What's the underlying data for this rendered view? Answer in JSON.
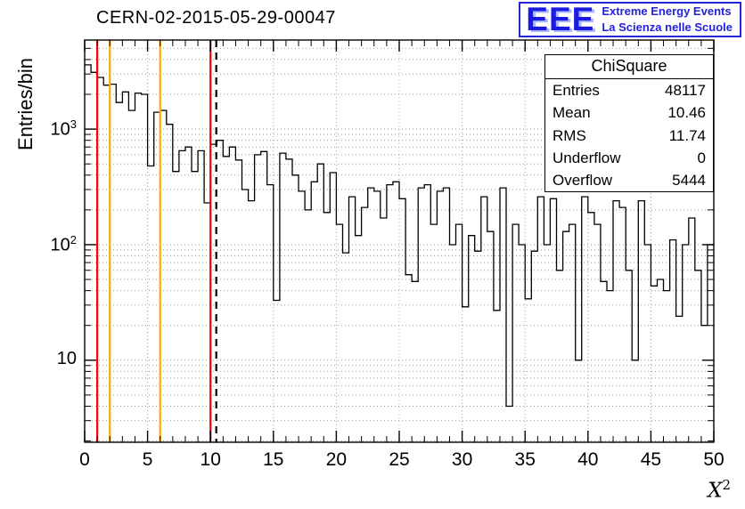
{
  "title": "CERN-02-2015-05-29-00047",
  "logo": {
    "acronym": "EEE",
    "line1": "Extreme Energy Events",
    "line2": "La Scienza nelle Scuole",
    "color": "#2323dd"
  },
  "stats": {
    "header": "ChiSquare",
    "rows": [
      {
        "label": "Entries",
        "value": "48117"
      },
      {
        "label": "Mean",
        "value": "10.46"
      },
      {
        "label": "RMS",
        "value": "11.74"
      },
      {
        "label": "Underflow",
        "value": "0"
      },
      {
        "label": "Overflow",
        "value": "5444"
      }
    ]
  },
  "chart_data": {
    "type": "bar",
    "subtype": "step-histogram",
    "title": "CERN-02-2015-05-29-00047",
    "ylabel": "Entries/bin",
    "x_label_base": "X",
    "x_label_exp": "2",
    "y_scale": "log",
    "grid": true,
    "xlim": [
      0,
      50
    ],
    "ylim": [
      1.95,
      5900
    ],
    "bin_width": 0.5,
    "x_ticks": [
      0,
      5,
      10,
      15,
      20,
      25,
      30,
      35,
      40,
      45,
      50
    ],
    "x_minor_step": 1,
    "y_ticks": [
      {
        "base": "10",
        "exp": "",
        "value": 10
      },
      {
        "base": "10",
        "exp": "2",
        "value": 100
      },
      {
        "base": "10",
        "exp": "3",
        "value": 1000
      }
    ],
    "values": [
      3600,
      3100,
      2800,
      2400,
      2450,
      1700,
      2100,
      1450,
      2050,
      2000,
      480,
      1400,
      1450,
      1100,
      430,
      650,
      700,
      430,
      650,
      230,
      740,
      800,
      580,
      700,
      540,
      300,
      240,
      600,
      640,
      330,
      33,
      620,
      550,
      400,
      290,
      200,
      350,
      500,
      190,
      420,
      150,
      85,
      260,
      120,
      210,
      310,
      290,
      170,
      330,
      350,
      250,
      55,
      48,
      310,
      330,
      150,
      290,
      310,
      100,
      150,
      29,
      120,
      88,
      260,
      130,
      27,
      310,
      4,
      150,
      100,
      34,
      88,
      260,
      100,
      250,
      60,
      130,
      150,
      10,
      260,
      190,
      150,
      48,
      40,
      240,
      210,
      60,
      10,
      240,
      100,
      44,
      50,
      40,
      110,
      24,
      100,
      170,
      60,
      20,
      100
    ],
    "marker_lines": [
      {
        "x": 1,
        "color": "#ff0000",
        "style": "solid",
        "name": "red-low-cut"
      },
      {
        "x": 2,
        "color": "#ffaa00",
        "style": "solid",
        "name": "yellow-low"
      },
      {
        "x": 6,
        "color": "#ffaa00",
        "style": "solid",
        "name": "yellow-high"
      },
      {
        "x": 10,
        "color": "#ff0000",
        "style": "solid",
        "name": "red-high-cut"
      },
      {
        "x": 10.46,
        "color": "#000000",
        "style": "dashed",
        "name": "mean-line"
      }
    ],
    "colors": {
      "histogram": "#000000",
      "grid": "#999999",
      "frame": "#000000"
    }
  }
}
